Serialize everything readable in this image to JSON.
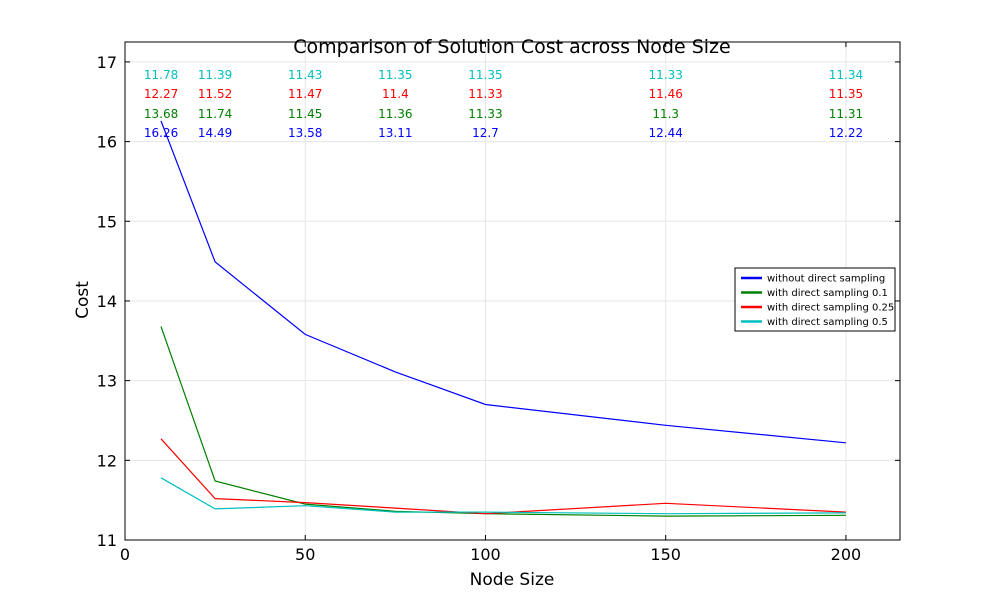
{
  "chart_data": {
    "type": "line",
    "title": "Comparison of Solution Cost across Node Size",
    "xlabel": "Node Size",
    "ylabel": "Cost",
    "xlim": [
      0,
      215
    ],
    "ylim": [
      11,
      17.25
    ],
    "xticks": [
      0,
      50,
      100,
      150,
      200
    ],
    "yticks": [
      11,
      12,
      13,
      14,
      15,
      16,
      17
    ],
    "grid": true,
    "legend_position": "center-right",
    "x": [
      10,
      25,
      50,
      75,
      100,
      150,
      200
    ],
    "series": [
      {
        "name": "without direct sampling",
        "color": "#0000ff",
        "values": [
          16.26,
          14.49,
          13.58,
          13.11,
          12.7,
          12.44,
          12.22
        ],
        "labels": [
          "16.26",
          "14.49",
          "13.58",
          "13.11",
          "12.7",
          "12.44",
          "12.22"
        ]
      },
      {
        "name": "with direct sampling 0.1",
        "color": "#008000",
        "values": [
          13.68,
          11.74,
          11.45,
          11.36,
          11.33,
          11.3,
          11.31
        ],
        "labels": [
          "13.68",
          "11.74",
          "11.45",
          "11.36",
          "11.33",
          "11.3",
          "11.31"
        ]
      },
      {
        "name": "with direct sampling 0.25",
        "color": "#ff0000",
        "values": [
          12.27,
          11.52,
          11.47,
          11.4,
          11.33,
          11.46,
          11.35
        ],
        "labels": [
          "12.27",
          "11.52",
          "11.47",
          "11.4",
          "11.33",
          "11.46",
          "11.35"
        ]
      },
      {
        "name": "with direct sampling 0.5",
        "color": "#00bfbf",
        "values": [
          11.78,
          11.39,
          11.43,
          11.35,
          11.35,
          11.33,
          11.34
        ],
        "labels": [
          "11.78",
          "11.39",
          "11.43",
          "11.35",
          "11.35",
          "11.33",
          "11.34"
        ]
      }
    ]
  }
}
